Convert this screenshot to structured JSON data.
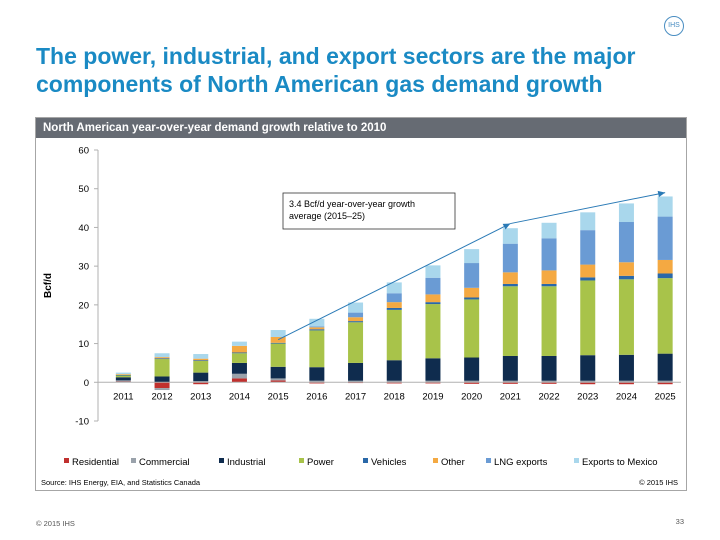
{
  "logo": {
    "text": "IHS"
  },
  "slide": {
    "title_line1": "The power, industrial, and export sectors are the major",
    "title_line2": "components of North American gas demand growth",
    "copyright": "© 2015 IHS",
    "page_number": "33"
  },
  "panel": {
    "header": "North American year-over-year demand growth relative to 2010",
    "source": "Source: IHS Energy, EIA, and Statistics Canada",
    "copyright": "© 2015 IHS"
  },
  "colors": {
    "Residential": "#c0302e",
    "Commercial": "#9aa2ab",
    "Industrial": "#0f2c4e",
    "Power": "#a8c34a",
    "Vehicles": "#2a68a8",
    "Other": "#f4a942",
    "LNG exports": "#6a9bd4",
    "Exports to Mexico": "#a9d7ec",
    "arrow": "#2a7ab6"
  },
  "chart_data": {
    "type": "bar",
    "stacked": true,
    "title": "North American year-over-year demand growth relative to 2010",
    "xlabel": "",
    "ylabel": "Bcf/d",
    "ylim": [
      -10,
      60
    ],
    "yticks": [
      -10,
      0,
      10,
      20,
      30,
      40,
      50,
      60
    ],
    "grid": false,
    "legend_position": "bottom",
    "categories": [
      "2011",
      "2012",
      "2013",
      "2014",
      "2015",
      "2016",
      "2017",
      "2018",
      "2019",
      "2020",
      "2021",
      "2022",
      "2023",
      "2024",
      "2025"
    ],
    "series": [
      {
        "name": "Residential",
        "values": [
          0.2,
          -1.5,
          -0.5,
          1.0,
          0.5,
          -0.3,
          -0.2,
          -0.3,
          -0.3,
          -0.4,
          -0.4,
          -0.4,
          -0.5,
          -0.5,
          -0.5
        ]
      },
      {
        "name": "Commercial",
        "values": [
          0.3,
          -0.5,
          0.3,
          1.2,
          0.5,
          0.4,
          0.4,
          0.4,
          0.4,
          0.4,
          0.4,
          0.4,
          0.4,
          0.4,
          0.4
        ]
      },
      {
        "name": "Industrial",
        "values": [
          0.8,
          1.5,
          2.2,
          2.8,
          3.0,
          3.5,
          4.6,
          5.3,
          5.8,
          6.0,
          6.4,
          6.4,
          6.6,
          6.7,
          7.0
        ]
      },
      {
        "name": "Power",
        "values": [
          0.5,
          4.5,
          3.0,
          2.5,
          6.0,
          9.5,
          10.5,
          13.0,
          14.0,
          15.0,
          18.0,
          18.0,
          19.3,
          19.5,
          19.5
        ]
      },
      {
        "name": "Vehicles",
        "values": [
          0.1,
          0.2,
          0.2,
          0.2,
          0.2,
          0.3,
          0.3,
          0.5,
          0.5,
          0.5,
          0.6,
          0.6,
          0.8,
          0.9,
          1.2
        ]
      },
      {
        "name": "Other",
        "values": [
          0.2,
          0.3,
          0.4,
          1.7,
          1.5,
          0.5,
          1.0,
          1.5,
          2.0,
          2.5,
          3.0,
          3.5,
          3.3,
          3.5,
          3.5
        ]
      },
      {
        "name": "LNG exports",
        "values": [
          0.0,
          0.0,
          0.0,
          0.0,
          0.0,
          0.2,
          1.2,
          2.3,
          4.3,
          6.4,
          7.4,
          8.3,
          8.9,
          10.4,
          11.2
        ]
      },
      {
        "name": "Exports to Mexico",
        "values": [
          0.4,
          1.0,
          1.2,
          1.1,
          1.8,
          2.0,
          2.6,
          2.8,
          3.2,
          3.6,
          4.0,
          4.0,
          4.6,
          4.8,
          5.2
        ]
      }
    ],
    "annotation": {
      "text_line1": "3.4 Bcf/d year-over-year growth",
      "text_line2": "average (2015–25)",
      "arrow_from": {
        "x": "2015",
        "y": 11
      },
      "arrow_via": {
        "x": "2021",
        "y": 41
      },
      "arrow_to": {
        "x": "2025",
        "y": 49
      }
    }
  }
}
